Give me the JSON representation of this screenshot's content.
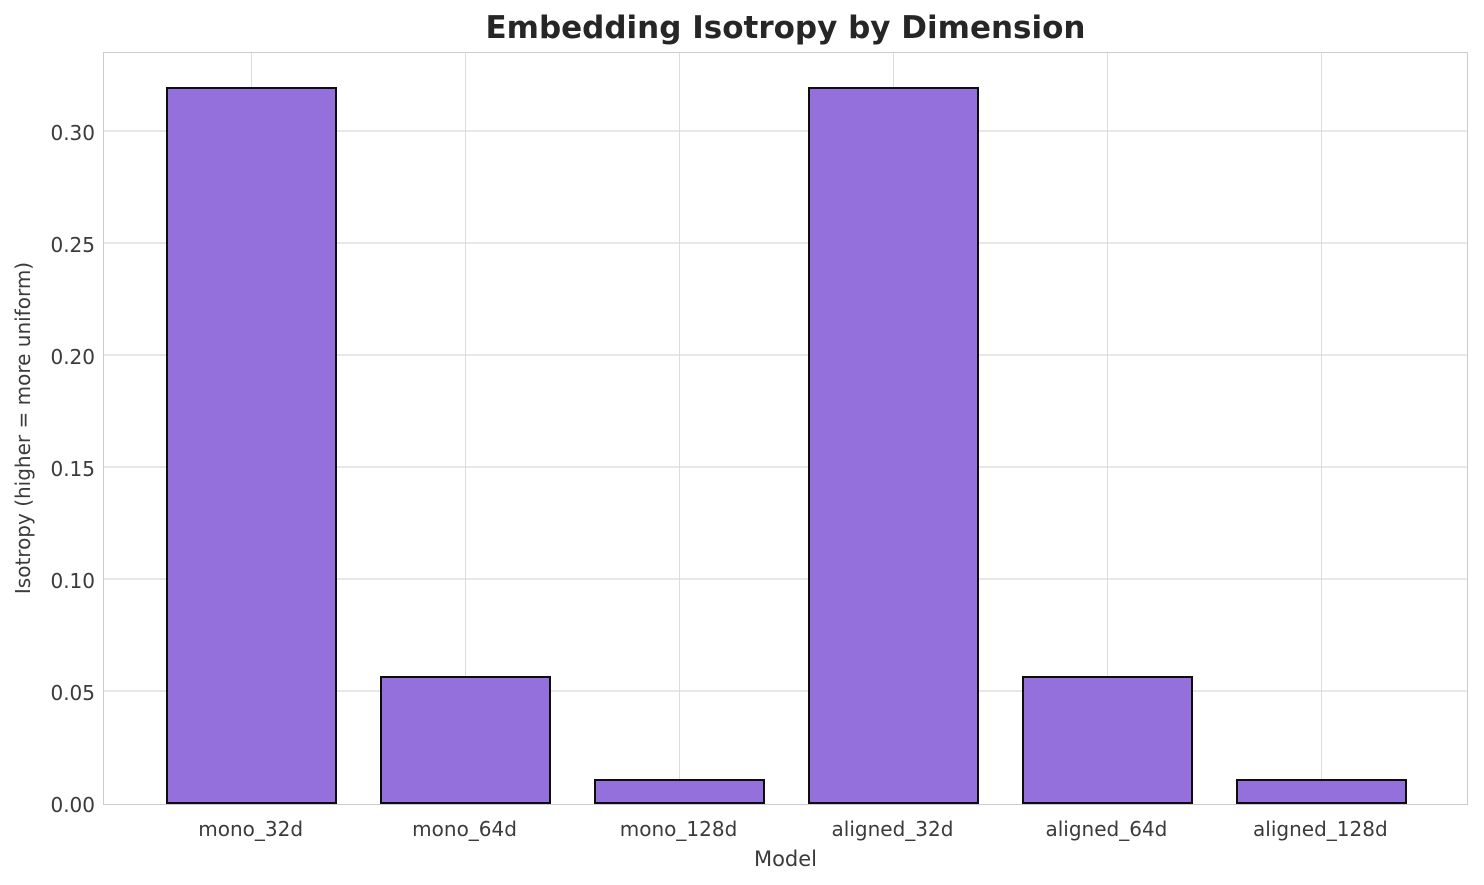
{
  "chart_data": {
    "type": "bar",
    "title": "Embedding Isotropy by Dimension",
    "xlabel": "Model",
    "ylabel": "Isotropy (higher = more uniform)",
    "categories": [
      "mono_32d",
      "mono_64d",
      "mono_128d",
      "aligned_32d",
      "aligned_64d",
      "aligned_128d"
    ],
    "values": [
      0.32,
      0.057,
      0.011,
      0.32,
      0.057,
      0.011
    ],
    "ylim": [
      0,
      0.336
    ],
    "yticks": [
      0.0,
      0.05,
      0.1,
      0.15,
      0.2,
      0.25,
      0.3
    ],
    "ytick_labels": [
      "0.00",
      "0.05",
      "0.10",
      "0.15",
      "0.20",
      "0.25",
      "0.30"
    ],
    "grid": true,
    "legend": "none",
    "bar_color": "#9370DB",
    "bar_edge_color": "#0d0d0d",
    "grid_color_horizontal": "#e7e7e7",
    "grid_color_vertical": "#dcdcdc",
    "spine_color": "#cccccc",
    "title_color": "#262626",
    "tick_label_color": "#3b3b3b"
  }
}
